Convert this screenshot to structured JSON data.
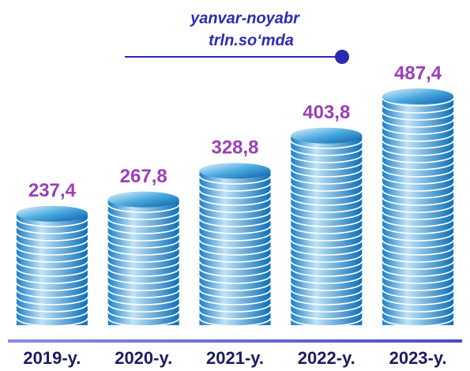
{
  "chart_data": {
    "type": "coin-stack",
    "title": "yanvar-noyabr",
    "subtitle": "trln.so‘mda",
    "categories": [
      "2019-y.",
      "2020-y.",
      "2021-y.",
      "2022-y.",
      "2023-y."
    ],
    "values": [
      237.4,
      267.8,
      328.8,
      403.8,
      487.4
    ],
    "value_labels": [
      "237,4",
      "267,8",
      "328,8",
      "403,8",
      "487,4"
    ],
    "color": "#1a8ad0"
  }
}
